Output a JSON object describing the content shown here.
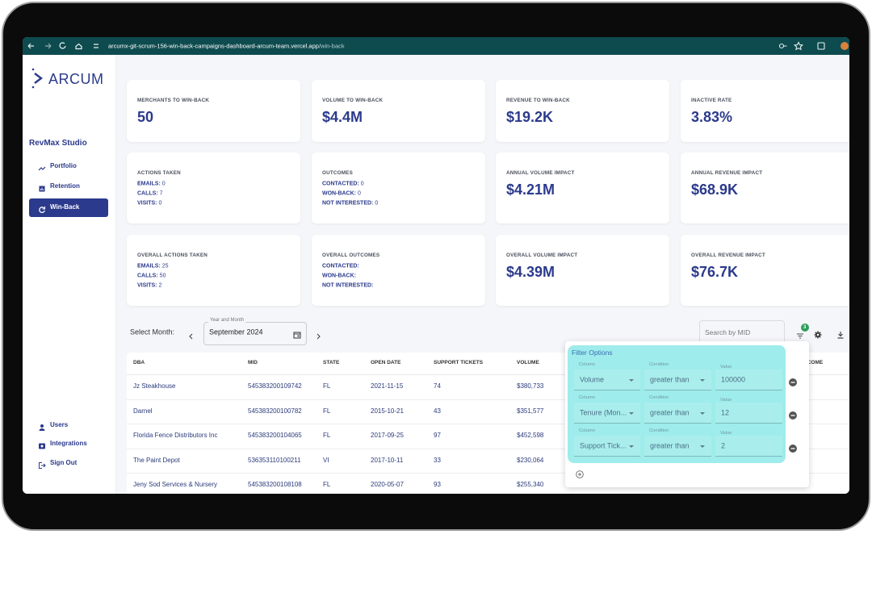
{
  "browser": {
    "url_host": "arcumx-git-scrum-156-win-back-campaigns-dashboard-arcum-team.vercel.app",
    "url_path": "/win-back"
  },
  "sidebar": {
    "logo": "ARCUM",
    "section": "RevMax Studio",
    "nav": [
      "Portfolio",
      "Retention",
      "Win-Back"
    ],
    "active": 2,
    "footer_nav": [
      "Users",
      "Integrations",
      "Sign Out"
    ]
  },
  "cards": [
    {
      "title": "MERCHANTS TO WIN-BACK",
      "value": "50"
    },
    {
      "title": "VOLUME TO WIN-BACK",
      "value": "$4.4M"
    },
    {
      "title": "REVENUE TO WIN-BACK",
      "value": "$19.2K"
    },
    {
      "title": "INACTIVE RATE",
      "value": "3.83%"
    },
    {
      "title": "ACTIONS TAKEN",
      "lines": [
        {
          "label": "EMAILS:",
          "value": "0"
        },
        {
          "label": "CALLS:",
          "value": "7"
        },
        {
          "label": "VISITS:",
          "value": "0"
        }
      ]
    },
    {
      "title": "OUTCOMES",
      "lines": [
        {
          "label": "CONTACTED:",
          "value": "0"
        },
        {
          "label": "WON-BACK:",
          "value": "0"
        },
        {
          "label": "NOT INTERESTED:",
          "value": "0"
        }
      ]
    },
    {
      "title": "ANNUAL VOLUME IMPACT",
      "value": "$4.21M"
    },
    {
      "title": "ANNUAL REVENUE IMPACT",
      "value": "$68.9K"
    },
    {
      "title": "OVERALL ACTIONS TAKEN",
      "lines": [
        {
          "label": "EMAILS:",
          "value": "25"
        },
        {
          "label": "CALLS:",
          "value": "50"
        },
        {
          "label": "VISITS:",
          "value": "2"
        }
      ]
    },
    {
      "title": "OVERALL OUTCOMES",
      "lines": [
        {
          "label": "CONTACTED:"
        },
        {
          "label": "WON-BACK:"
        },
        {
          "label": "NOT INTERESTED:"
        }
      ]
    },
    {
      "title": "OVERALL VOLUME IMPACT",
      "value": "$4.39M"
    },
    {
      "title": "OVERALL REVENUE IMPACT",
      "value": "$76.7K"
    }
  ],
  "month_selector": {
    "label": "Select Month:",
    "field_label": "Year and Month",
    "value": "September 2024"
  },
  "search_placeholder": "Search by MID",
  "filter_badge": "3",
  "table": {
    "columns": [
      "DBA",
      "MID",
      "STATE",
      "OPEN DATE",
      "SUPPORT TICKETS",
      "VOLUME",
      "OUTCOME"
    ],
    "rows": [
      [
        "Jz Steakhouse",
        "545383200109742",
        "FL",
        "2021-11-15",
        "74",
        "$380,733"
      ],
      [
        "Darnel",
        "545383200100782",
        "FL",
        "2015-10-21",
        "43",
        "$351,577"
      ],
      [
        "Florida Fence Distributors Inc",
        "545383200104065",
        "FL",
        "2017-09-25",
        "97",
        "$452,598"
      ],
      [
        "The Paint Depot",
        "536353110100211",
        "VI",
        "2017-10-11",
        "33",
        "$230,064"
      ],
      [
        "Jeny Sod Services & Nursery",
        "545383200108108",
        "FL",
        "2020-05-07",
        "93",
        "$255,340"
      ]
    ]
  },
  "filter_panel": {
    "title": "Filter Options",
    "rows": [
      {
        "column_label": "Column",
        "column": "Volume",
        "condition_label": "Condition",
        "condition": "greater than",
        "value_label": "Value",
        "value": "100000"
      },
      {
        "column_label": "Column",
        "column": "Tenure (Mon...",
        "condition_label": "Condition",
        "condition": "greater than",
        "value_label": "Value",
        "value": "12"
      },
      {
        "column_label": "Column",
        "column": "Support Tick...",
        "condition_label": "Condition",
        "condition": "greater than",
        "value_label": "Value",
        "value": "2"
      }
    ]
  }
}
